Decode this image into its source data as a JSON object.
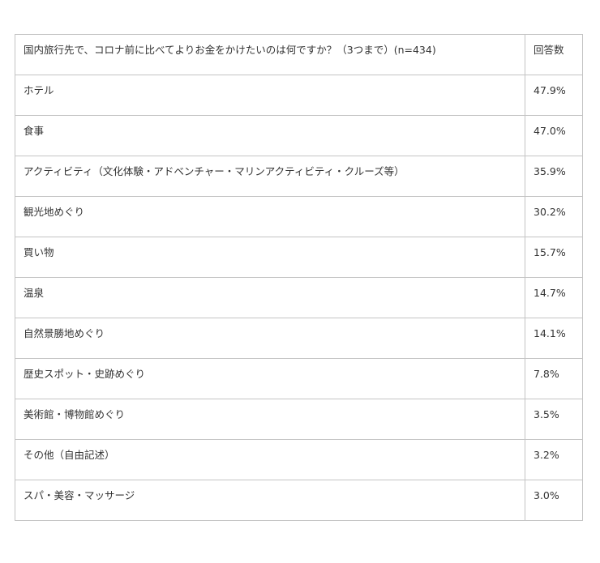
{
  "table": {
    "header": [
      "国内旅行先で、コロナ前に比べてよりお金をかけたいのは何ですか？（3つまで）(n=434)",
      "回答数"
    ],
    "rows": [
      [
        "ホテル",
        "47.9%"
      ],
      [
        "食事",
        "47.0%"
      ],
      [
        "アクティビティ（文化体験・アドベンチャー・マリンアクティビティ・クルーズ等）",
        "35.9%"
      ],
      [
        "観光地めぐり",
        "30.2%"
      ],
      [
        "買い物",
        "15.7%"
      ],
      [
        "温泉",
        "14.7%"
      ],
      [
        "自然景勝地めぐり",
        "14.1%"
      ],
      [
        "歴史スポット・史跡めぐり",
        "7.8%"
      ],
      [
        "美術館・博物館めぐり",
        "3.5%"
      ],
      [
        "その他（自由記述）",
        "3.2%"
      ],
      [
        "スパ・美容・マッサージ",
        "3.0%"
      ]
    ]
  }
}
